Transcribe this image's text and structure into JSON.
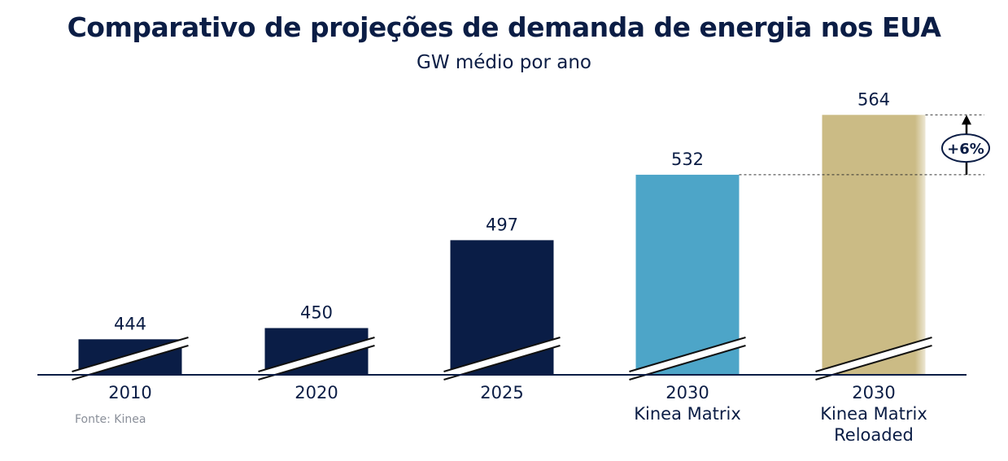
{
  "title": "Comparativo de projeções de demanda de energia nos EUA",
  "subtitle": "GW médio por ano",
  "source": "Fonte: Kinea",
  "colors": {
    "navy": "#0a1d46",
    "blue": "#4da5c8",
    "gold": "#cbbb85",
    "axis": "#0b1d45"
  },
  "chart_data": {
    "type": "bar",
    "title": "Comparativo de projeções de demanda de energia nos EUA",
    "subtitle": "GW médio por ano",
    "axis_break": true,
    "categories": [
      [
        "2010"
      ],
      [
        "2020"
      ],
      [
        "2025"
      ],
      [
        "2030",
        "Kinea Matrix"
      ],
      [
        "2030",
        "Kinea Matrix",
        "Reloaded"
      ]
    ],
    "values": [
      444,
      450,
      497,
      532,
      564
    ],
    "bar_colors": [
      "#0a1d46",
      "#0a1d46",
      "#0a1d46",
      "#4da5c8",
      "#cbbb85"
    ],
    "annotation": {
      "text": "+6%",
      "from_value": 532,
      "to_value": 564
    }
  }
}
